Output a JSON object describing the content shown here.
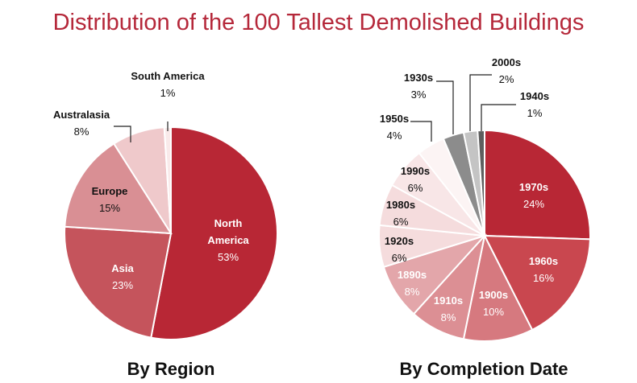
{
  "title": "Distribution of the 100 Tallest Demolished Buildings",
  "chart_data": [
    {
      "type": "pie",
      "title": "By Region",
      "unit": "%",
      "slices": [
        {
          "label": "North America",
          "value": 53,
          "color": "#b82735",
          "label_color": "#ffffff"
        },
        {
          "label": "Asia",
          "value": 23,
          "color": "#c5545c",
          "label_color": "#ffffff"
        },
        {
          "label": "Europe",
          "value": 15,
          "color": "#d98f94",
          "label_color": "#111111"
        },
        {
          "label": "Australasia",
          "value": 8,
          "color": "#efc9cb",
          "label_color": "#111111"
        },
        {
          "label": "South America",
          "value": 1,
          "color": "#f9eaea",
          "label_color": "#111111"
        }
      ]
    },
    {
      "type": "pie",
      "title": "By Completion Date",
      "unit": "%",
      "slices": [
        {
          "label": "1970s",
          "value": 24,
          "color": "#b82735",
          "label_color": "#ffffff"
        },
        {
          "label": "1960s",
          "value": 16,
          "color": "#c9474f",
          "label_color": "#ffffff"
        },
        {
          "label": "1900s",
          "value": 10,
          "color": "#d6797f",
          "label_color": "#ffffff"
        },
        {
          "label": "1910s",
          "value": 8,
          "color": "#dc8f94",
          "label_color": "#ffffff"
        },
        {
          "label": "1890s",
          "value": 8,
          "color": "#e3a6aa",
          "label_color": "#ffffff"
        },
        {
          "label": "1920s",
          "value": 6,
          "color": "#f5dcdd",
          "label_color": "#111111"
        },
        {
          "label": "1980s",
          "value": 6,
          "color": "#f5dcdd",
          "label_color": "#111111"
        },
        {
          "label": "1990s",
          "value": 6,
          "color": "#f8e6e7",
          "label_color": "#111111"
        },
        {
          "label": "1950s",
          "value": 4,
          "color": "#fcf4f4",
          "label_color": "#111111"
        },
        {
          "label": "1930s",
          "value": 3,
          "color": "#8c8c8c",
          "label_color": "#111111"
        },
        {
          "label": "2000s",
          "value": 2,
          "color": "#c4c4c4",
          "label_color": "#111111"
        },
        {
          "label": "1940s",
          "value": 1,
          "color": "#5e5e5e",
          "label_color": "#111111"
        }
      ]
    }
  ]
}
